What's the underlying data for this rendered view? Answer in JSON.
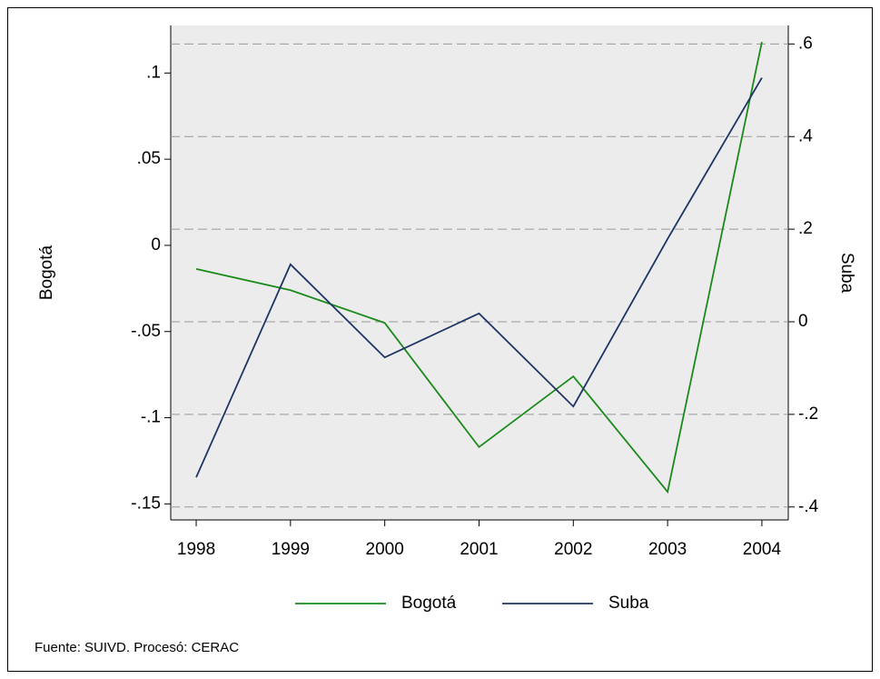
{
  "chart_data": {
    "type": "line",
    "x": [
      1998,
      1999,
      2000,
      2001,
      2002,
      2003,
      2004
    ],
    "series": [
      {
        "name": "Bogotá",
        "color": "#1a8a1a",
        "values": [
          -0.0137,
          -0.026,
          -0.045,
          -0.117,
          -0.076,
          -0.143,
          0.118
        ]
      },
      {
        "name": "Suba",
        "color": "#1f3566",
        "axis": "y2",
        "values": [
          -0.336,
          0.124,
          -0.077,
          0.018,
          -0.183,
          0.179,
          0.527
        ]
      }
    ],
    "ylabel": "Bogotá",
    "y2label": "Suba",
    "xlim": [
      1997.73,
      2004.28
    ],
    "xticks": [
      1998,
      1999,
      2000,
      2001,
      2002,
      2003,
      2004
    ],
    "ylim": [
      -0.1593,
      0.1276
    ],
    "yticks": [
      {
        "value": -0.15,
        "label": "-.15"
      },
      {
        "value": -0.1,
        "label": "-.1"
      },
      {
        "value": -0.05,
        "label": "-.05"
      },
      0,
      {
        "value": 0.05,
        "label": ".05"
      },
      {
        "value": 0.1,
        "label": ".1"
      }
    ],
    "y2lim": [
      -0.428,
      0.64
    ],
    "y2ticks": [
      {
        "value": -0.4,
        "label": "-.4"
      },
      {
        "value": -0.2,
        "label": "-.2"
      },
      0,
      {
        "value": 0.2,
        "label": ".2"
      },
      {
        "value": 0.4,
        "label": ".4"
      },
      {
        "value": 0.6,
        "label": ".6"
      }
    ],
    "grid": "y2",
    "note": "Fuente: SUIVD. Procesó: CERAC"
  }
}
